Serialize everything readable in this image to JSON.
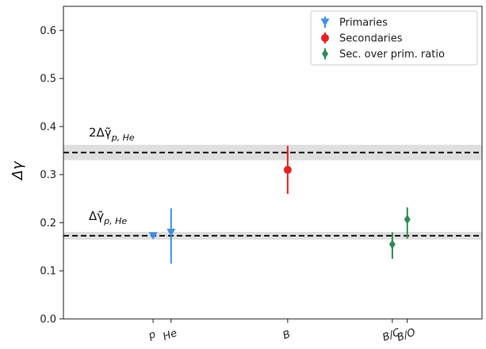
{
  "chart_data": {
    "type": "scatter",
    "title": "",
    "xlabel": "",
    "ylabel": "Δγ",
    "ylim": [
      0.0,
      0.65
    ],
    "yticks": [
      0.0,
      0.1,
      0.2,
      0.3,
      0.4,
      0.5,
      0.6
    ],
    "ytick_labels": [
      "0.0",
      "0.1",
      "0.2",
      "0.3",
      "0.4",
      "0.5",
      "0.6"
    ],
    "xticks": [
      {
        "label": "p",
        "x": 3.0
      },
      {
        "label": "He",
        "x": 3.6
      },
      {
        "label": "B",
        "x": 7.5
      },
      {
        "label": "B/C",
        "x": 11.0
      },
      {
        "label": "B/O",
        "x": 11.5
      }
    ],
    "xlim": [
      0.0,
      14.0
    ],
    "legend_position": "top-right",
    "grid": false,
    "series": [
      {
        "name": "Primaries",
        "color": "#3a8fe8",
        "marker": "triangle-down",
        "points": [
          {
            "x": 3.0,
            "y": 0.173,
            "err_low": 0.003,
            "err_high": 0.003
          },
          {
            "x": 3.6,
            "y": 0.18,
            "err_low": 0.065,
            "err_high": 0.05
          }
        ]
      },
      {
        "name": "Secondaries",
        "color": "#e82020",
        "marker": "circle",
        "points": [
          {
            "x": 7.5,
            "y": 0.31,
            "err_low": 0.05,
            "err_high": 0.05
          }
        ]
      },
      {
        "name": "Sec. over prim. ratio",
        "color": "#2e8b57",
        "marker": "diamond",
        "points": [
          {
            "x": 11.0,
            "y": 0.155,
            "err_low": 0.03,
            "err_high": 0.025
          },
          {
            "x": 11.5,
            "y": 0.207,
            "err_low": 0.04,
            "err_high": 0.025
          }
        ]
      }
    ],
    "reference_lines": [
      {
        "label": "2Δγ̃p,He",
        "main": "2Δ",
        "sub": "p, He",
        "y": 0.346,
        "band_low": 0.33,
        "band_high": 0.362
      },
      {
        "label": "Δγ̃p,He",
        "main": "Δ",
        "sub": "p, He",
        "y": 0.173,
        "band_low": 0.165,
        "band_high": 0.181
      }
    ]
  }
}
